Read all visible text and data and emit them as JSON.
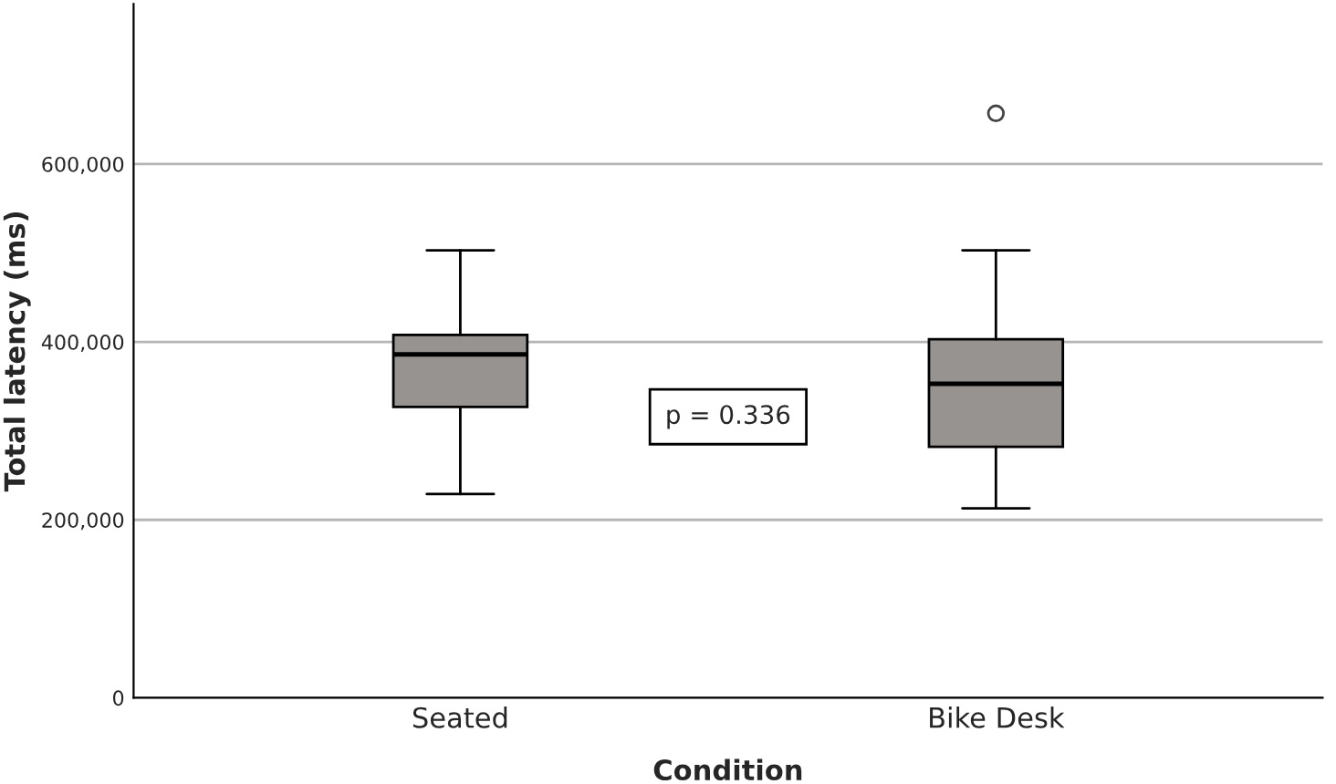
{
  "chart_data": {
    "type": "box",
    "xlabel": "Condition",
    "ylabel": "Total latency (ms)",
    "categories": [
      "Seated",
      "Bike Desk"
    ],
    "boxes": [
      {
        "low": 229000,
        "q1": 327000,
        "median": 386000,
        "q3": 408000,
        "high": 503000
      },
      {
        "low": 213000,
        "q1": 282000,
        "median": 353000,
        "q3": 403000,
        "high": 503000,
        "outliers": [
          657000
        ]
      }
    ],
    "color": "#979391",
    "ylim": [
      0,
      780000
    ],
    "yticks": [
      0,
      {
        "value": 200000,
        "label": "200,000"
      },
      {
        "value": 400000,
        "label": "400,000"
      },
      {
        "value": 600000,
        "label": "600,000"
      }
    ],
    "grid": "y",
    "annotations": [
      "p = 0.336"
    ]
  }
}
